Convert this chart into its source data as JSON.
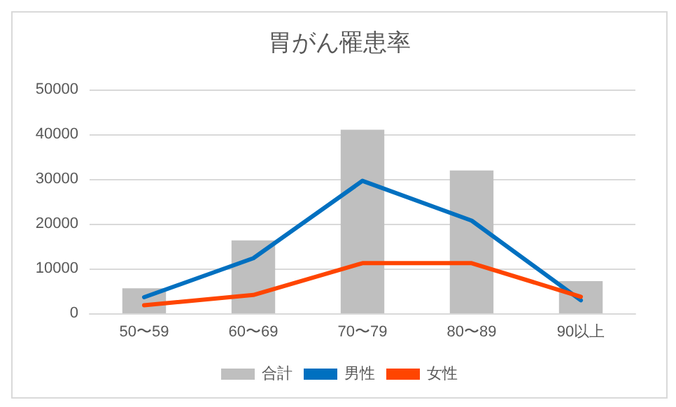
{
  "chart_data": {
    "type": "bar",
    "title": "胃がん罹患率",
    "categories": [
      "50〜59",
      "60〜69",
      "70〜79",
      "80〜89",
      "90以上"
    ],
    "series": [
      {
        "name": "合計",
        "color": "#bfbfbf",
        "values": [
          5600,
          16300,
          41000,
          31900,
          7200
        ]
      },
      {
        "name": "男性",
        "type": "line",
        "color": "#0070c0",
        "values": [
          3600,
          12300,
          29600,
          20700,
          2900
        ]
      },
      {
        "name": "女性",
        "type": "line",
        "color": "#ff4500",
        "values": [
          1800,
          4100,
          11200,
          11200,
          3700
        ]
      }
    ],
    "ylim": [
      0,
      50000
    ],
    "yticks": [
      0,
      10000,
      20000,
      30000,
      40000,
      50000
    ],
    "grid": "y",
    "legend": "bottom",
    "marker": "none",
    "line_style": "solid"
  }
}
